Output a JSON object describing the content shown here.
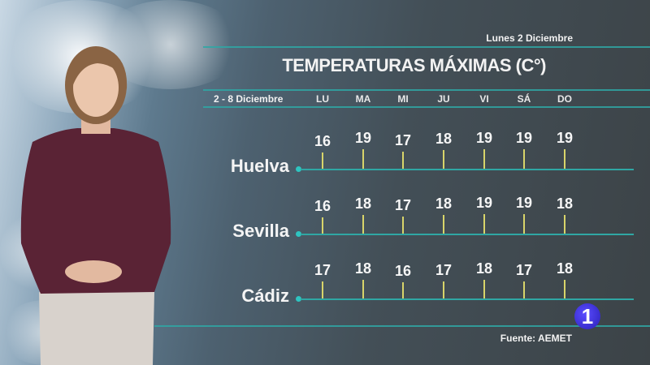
{
  "header": {
    "date": "Lunes 2 Diciembre",
    "title": "TEMPERATURAS MÁXIMAS (C°)",
    "range": "2 - 8 Diciembre"
  },
  "days": [
    "LU",
    "MA",
    "MI",
    "JU",
    "VI",
    "SÁ",
    "DO"
  ],
  "cities": [
    {
      "name": "Huelva",
      "values": [
        16,
        19,
        17,
        18,
        19,
        19,
        19
      ]
    },
    {
      "name": "Sevilla",
      "values": [
        16,
        18,
        17,
        18,
        19,
        19,
        18
      ]
    },
    {
      "name": "Cádiz",
      "values": [
        17,
        18,
        16,
        17,
        18,
        17,
        18
      ]
    }
  ],
  "footer": {
    "source": "Fuente: AEMET",
    "channel_logo": "1"
  },
  "colors": {
    "line": "#2fa7a4",
    "tick": "#d8d46a",
    "dot": "#2ec4c0",
    "logo": "#3a2fd6"
  }
}
